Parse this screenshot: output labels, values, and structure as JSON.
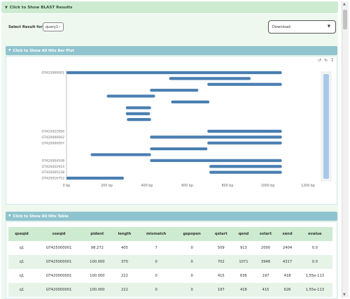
{
  "results_header": {
    "label": "Click to Show BLAST Results"
  },
  "select_result": {
    "label": "Select Result for",
    "value": "query1"
  },
  "download": {
    "label": "Download"
  },
  "bar_panel": {
    "title": "Click to Show All Hits Bar Plot"
  },
  "table_panel": {
    "title": "Click to Show All Hits Table"
  },
  "colors": {
    "bar": "#4a7fb1",
    "header_green": "#cdebd1",
    "panel_teal": "#8fc4cf",
    "slider": "#a9c8e8"
  },
  "chart_data": {
    "type": "bar",
    "orientation": "horizontal-range",
    "xlim": [
      0,
      1200
    ],
    "x_ticks": [
      "0 bp",
      "200 bp",
      "400 bp",
      "600 bp",
      "800 bp",
      "1000 bp",
      "1200 bp"
    ],
    "y_labels": [
      "GT425000001",
      "",
      "",
      "",
      "",
      "",
      "",
      "",
      "",
      "",
      "GT425022956",
      "GT420000002",
      "GT420000097",
      "",
      "",
      "GT42S004108",
      "GT42S022914",
      "GT42S005238",
      "GT42S016752"
    ],
    "ranges": [
      [
        0,
        1070
      ],
      [
        510,
        915
      ],
      [
        700,
        1070
      ],
      [
        415,
        655
      ],
      [
        200,
        440
      ],
      [
        520,
        710
      ],
      [
        295,
        420
      ],
      [
        295,
        415
      ],
      [
        300,
        420
      ],
      [
        0,
        0
      ],
      [
        700,
        1070
      ],
      [
        415,
        1070
      ],
      [
        700,
        1070
      ],
      [
        415,
        700
      ],
      [
        120,
        420
      ],
      [
        415,
        1070
      ],
      [
        710,
        1070
      ],
      [
        710,
        1070
      ],
      [
        0,
        285
      ]
    ]
  },
  "table": {
    "columns": [
      "qseqid",
      "sseqid",
      "pident",
      "length",
      "mismatch",
      "gapopen",
      "qstart",
      "qend",
      "sstart",
      "send",
      "evalue"
    ],
    "rows": [
      [
        "q1",
        "GT425000001",
        "98.272",
        "405",
        "7",
        "0",
        "509",
        "913",
        "2000",
        "2404",
        "0.0"
      ],
      [
        "q1",
        "GT425000001",
        "100.000",
        "370",
        "0",
        "0",
        "702",
        "1071",
        "3948",
        "4317",
        "0.0"
      ],
      [
        "q1",
        "GT420000001",
        "100.000",
        "222",
        "0",
        "0",
        "415",
        "636",
        "197",
        "418",
        "1.55e-113"
      ],
      [
        "q1",
        "GT420000001",
        "100.000",
        "222",
        "0",
        "0",
        "197",
        "418",
        "415",
        "626",
        "1.55e-113"
      ]
    ]
  }
}
